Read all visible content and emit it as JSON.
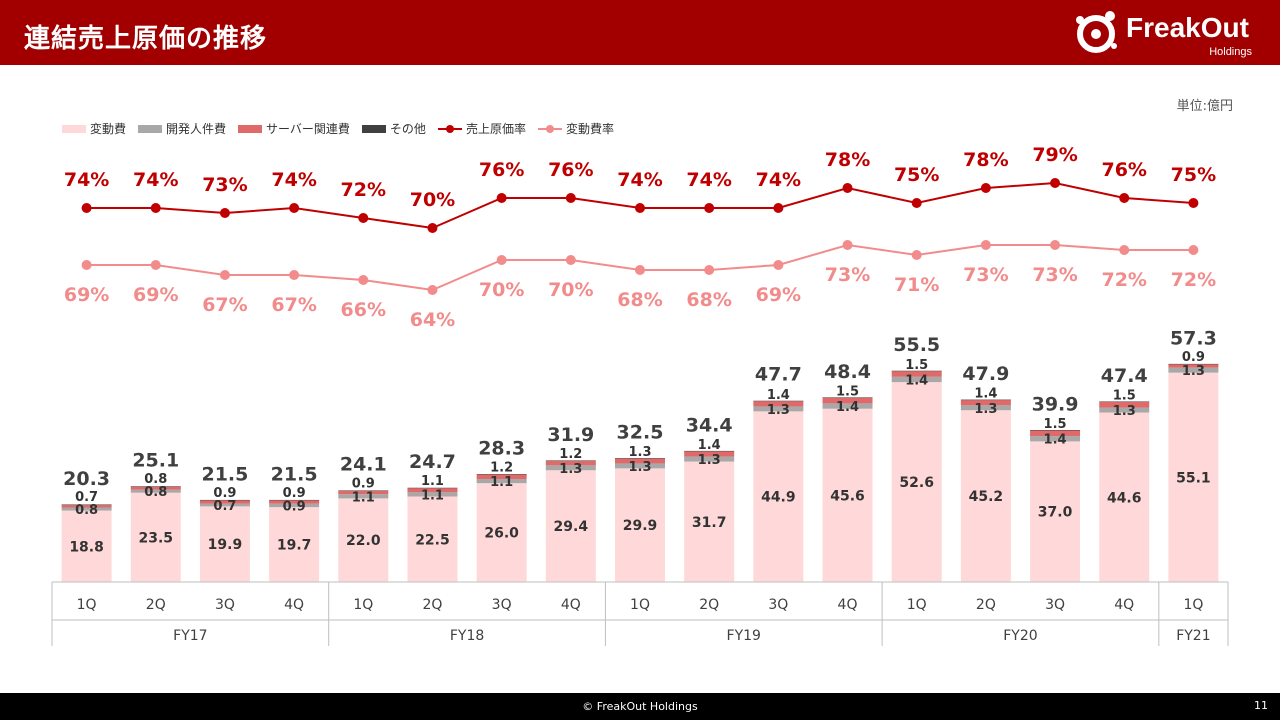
{
  "header": {
    "title": "連結売上原価の推移",
    "logo_text": "FreakOut",
    "logo_sub": "Holdings"
  },
  "unit": "単位:億円",
  "footer": {
    "copyright": "© FreakOut Holdings",
    "page": "11"
  },
  "colors": {
    "variable": "#ffd9d9",
    "dev": "#a8a8a8",
    "server": "#e06a6a",
    "other": "#404040",
    "cogs_rate": "#c00000",
    "var_rate": "#f28b8b"
  },
  "chart_data": {
    "type": "bar",
    "stacked": true,
    "categories": [
      "1Q",
      "2Q",
      "3Q",
      "4Q",
      "1Q",
      "2Q",
      "3Q",
      "4Q",
      "1Q",
      "2Q",
      "3Q",
      "4Q",
      "1Q",
      "2Q",
      "3Q",
      "4Q",
      "1Q"
    ],
    "groups": [
      {
        "label": "FY17",
        "count": 4
      },
      {
        "label": "FY18",
        "count": 4
      },
      {
        "label": "FY19",
        "count": 4
      },
      {
        "label": "FY20",
        "count": 4
      },
      {
        "label": "FY21",
        "count": 1
      }
    ],
    "series": [
      {
        "name": "変動費",
        "values": [
          18.8,
          23.5,
          19.9,
          19.7,
          22.0,
          22.5,
          26.0,
          29.4,
          29.9,
          31.7,
          44.9,
          45.6,
          52.6,
          45.2,
          37.0,
          44.6,
          55.1
        ],
        "labels": [
          "18.8",
          "23.5",
          "19.9",
          "19.7",
          "22.0",
          "22.5",
          "26.0",
          "29.4",
          "29.9",
          "31.7",
          "44.9",
          "45.6",
          "52.6",
          "45.2",
          "37.0",
          "44.6",
          "55.1"
        ]
      },
      {
        "name": "開発人件費",
        "values": [
          0.8,
          0.8,
          0.7,
          0.9,
          1.1,
          1.1,
          1.1,
          1.3,
          1.3,
          1.3,
          1.3,
          1.4,
          1.4,
          1.3,
          1.4,
          1.3,
          1.3
        ],
        "labels": [
          "0.8",
          "0.8",
          "0.7",
          "0.9",
          "1.1",
          "1.1",
          "1.1",
          "1.3",
          "1.3",
          "1.3",
          "1.3",
          "1.4",
          "1.4",
          "1.3",
          "1.4",
          "1.3",
          "1.3"
        ]
      },
      {
        "name": "サーバー関連費",
        "values": [
          0.7,
          0.8,
          0.9,
          0.9,
          0.9,
          1.1,
          1.2,
          1.2,
          1.3,
          1.4,
          1.4,
          1.5,
          1.5,
          1.4,
          1.5,
          1.5,
          0.9
        ],
        "labels": [
          "0.7",
          "0.8",
          "0.9",
          "0.9",
          "0.9",
          "1.1",
          "1.2",
          "1.2",
          "1.3",
          "1.4",
          "1.4",
          "1.5",
          "1.5",
          "1.4",
          "1.5",
          "1.5",
          "0.9"
        ]
      },
      {
        "name": "その他",
        "values": [
          0.1,
          0.1,
          0.1,
          0.1,
          0.1,
          0.1,
          0.1,
          0.1,
          0.1,
          0.1,
          0.1,
          0.1,
          0.1,
          0.1,
          0.1,
          0.1,
          0.1
        ]
      }
    ],
    "totals": [
      20.3,
      25.1,
      21.5,
      21.5,
      24.1,
      24.7,
      28.3,
      31.9,
      32.5,
      34.4,
      47.7,
      48.4,
      55.5,
      47.9,
      39.9,
      47.4,
      57.3
    ],
    "total_labels": [
      "20.3",
      "25.1",
      "21.5",
      "21.5",
      "24.1",
      "24.7",
      "28.3",
      "31.9",
      "32.5",
      "34.4",
      "47.7",
      "48.4",
      "55.5",
      "47.9",
      "39.9",
      "47.4",
      "57.3"
    ],
    "lines": [
      {
        "name": "売上原価率",
        "values": [
          74,
          74,
          73,
          74,
          72,
          70,
          76,
          76,
          74,
          74,
          74,
          78,
          75,
          78,
          79,
          76,
          75
        ],
        "labels": [
          "74%",
          "74%",
          "73%",
          "74%",
          "72%",
          "70%",
          "76%",
          "76%",
          "74%",
          "74%",
          "74%",
          "78%",
          "75%",
          "78%",
          "79%",
          "76%",
          "75%"
        ]
      },
      {
        "name": "変動費率",
        "values": [
          69,
          69,
          67,
          67,
          66,
          64,
          70,
          70,
          68,
          68,
          69,
          73,
          71,
          73,
          73,
          72,
          72
        ],
        "labels": [
          "69%",
          "69%",
          "67%",
          "67%",
          "66%",
          "64%",
          "70%",
          "70%",
          "68%",
          "68%",
          "69%",
          "73%",
          "71%",
          "73%",
          "73%",
          "72%",
          "72%"
        ]
      }
    ],
    "legend_position": "top-left"
  }
}
